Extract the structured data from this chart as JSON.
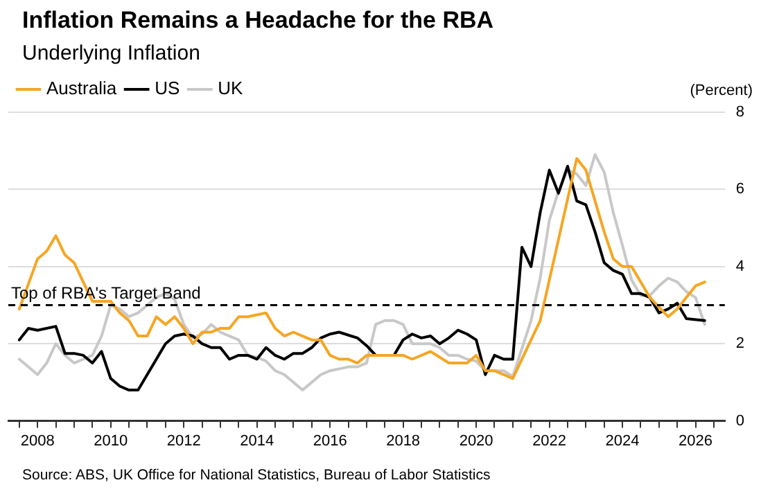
{
  "chart_data": {
    "type": "line",
    "title": "Inflation Remains a Headache for the RBA",
    "subtitle": "Underlying Inflation",
    "ylabel": "(Percent)",
    "annotations": [
      "Source: ABS, UK Office for National Statistics, Bureau of Labor Statistics"
    ],
    "xlim": [
      2007.2,
      2026.8
    ],
    "xticks": [
      {
        "value": 2007.5,
        "label": null
      },
      2008,
      {
        "value": 2008.5,
        "label": null
      },
      {
        "value": 2009,
        "label": null
      },
      {
        "value": 2009.5,
        "label": null
      },
      2010,
      {
        "value": 2010.5,
        "label": null
      },
      {
        "value": 2011,
        "label": null
      },
      {
        "value": 2011.5,
        "label": null
      },
      2012,
      {
        "value": 2012.5,
        "label": null
      },
      {
        "value": 2013,
        "label": null
      },
      {
        "value": 2013.5,
        "label": null
      },
      2014,
      {
        "value": 2014.5,
        "label": null
      },
      {
        "value": 2015,
        "label": null
      },
      {
        "value": 2015.5,
        "label": null
      },
      2016,
      {
        "value": 2016.5,
        "label": null
      },
      {
        "value": 2017,
        "label": null
      },
      {
        "value": 2017.5,
        "label": null
      },
      2018,
      {
        "value": 2018.5,
        "label": null
      },
      {
        "value": 2019,
        "label": null
      },
      {
        "value": 2019.5,
        "label": null
      },
      2020,
      {
        "value": 2020.5,
        "label": null
      },
      {
        "value": 2021,
        "label": null
      },
      {
        "value": 2021.5,
        "label": null
      },
      2022,
      {
        "value": 2022.5,
        "label": null
      },
      {
        "value": 2023,
        "label": null
      },
      {
        "value": 2023.5,
        "label": null
      },
      2024,
      {
        "value": 2024.5,
        "label": null
      },
      {
        "value": 2025,
        "label": null
      },
      {
        "value": 2025.5,
        "label": null
      },
      2026,
      {
        "value": 2026.5,
        "label": null
      }
    ],
    "ylim": [
      0,
      8
    ],
    "yticks": [
      0,
      2,
      4,
      6,
      8
    ],
    "grid": "y",
    "legend": "top left",
    "line_style": "solid",
    "marker": "none",
    "ref_lines": [
      {
        "axis": "y",
        "value": 3,
        "label": "Top of RBA's Target Band",
        "color": "#000000",
        "line_style": "dashed"
      }
    ],
    "series": [
      {
        "name": "Australia",
        "color": "#f5a623",
        "x": [
          2007.5,
          2008.0,
          2008.25,
          2008.5,
          2008.75,
          2009.0,
          2009.25,
          2009.5,
          2010.0,
          2010.25,
          2010.5,
          2010.75,
          2011.0,
          2011.25,
          2011.5,
          2011.75,
          2012.0,
          2012.25,
          2012.5,
          2012.75,
          2013.0,
          2013.25,
          2013.5,
          2013.75,
          2014.25,
          2014.5,
          2014.75,
          2015.0,
          2015.25,
          2015.5,
          2015.75,
          2016.0,
          2016.25,
          2016.5,
          2016.75,
          2017.0,
          2018.0,
          2018.25,
          2018.75,
          2019.25,
          2019.75,
          2020.0,
          2020.25,
          2020.5,
          2020.75,
          2021.0,
          2021.75,
          2022.75,
          2023.0,
          2023.5,
          2023.75,
          2024.0,
          2024.25,
          2024.75,
          2025.25,
          2025.5,
          2025.75,
          2026.0,
          2026.25
        ],
        "values": [
          2.9,
          4.2,
          4.4,
          4.8,
          4.3,
          4.1,
          3.6,
          3.1,
          3.1,
          2.8,
          2.6,
          2.2,
          2.2,
          2.7,
          2.5,
          2.7,
          2.4,
          2.0,
          2.3,
          2.3,
          2.4,
          2.4,
          2.7,
          2.7,
          2.8,
          2.4,
          2.2,
          2.3,
          2.2,
          2.1,
          2.1,
          1.7,
          1.6,
          1.6,
          1.5,
          1.7,
          1.7,
          1.6,
          1.8,
          1.5,
          1.5,
          1.7,
          1.3,
          1.3,
          1.2,
          1.1,
          2.6,
          6.8,
          6.5,
          4.9,
          4.2,
          4.0,
          4.0,
          3.2,
          2.7,
          2.9,
          3.2,
          3.5,
          3.6
        ]
      },
      {
        "name": "US",
        "color": "#000000",
        "x": [
          2007.5,
          2007.75,
          2008.0,
          2008.5,
          2008.75,
          2009.0,
          2009.25,
          2009.5,
          2009.75,
          2010.0,
          2010.25,
          2010.5,
          2010.75,
          2011.0,
          2011.25,
          2011.5,
          2011.75,
          2012.0,
          2012.25,
          2012.5,
          2012.75,
          2013.0,
          2013.25,
          2013.5,
          2013.75,
          2014.0,
          2014.25,
          2014.5,
          2014.75,
          2015.0,
          2015.25,
          2015.5,
          2015.75,
          2016.0,
          2016.25,
          2016.75,
          2017.0,
          2017.25,
          2017.75,
          2018.0,
          2018.25,
          2018.5,
          2018.75,
          2019.0,
          2019.25,
          2019.5,
          2019.75,
          2020.0,
          2020.25,
          2020.5,
          2020.75,
          2021.0,
          2021.25,
          2021.5,
          2021.75,
          2022.0,
          2022.25,
          2022.5,
          2022.75,
          2023.0,
          2023.25,
          2023.5,
          2023.75,
          2024.0,
          2024.25,
          2024.5,
          2024.75,
          2025.0,
          2025.25,
          2025.5,
          2025.75,
          2026.25
        ],
        "values": [
          2.1,
          2.4,
          2.35,
          2.45,
          1.75,
          1.75,
          1.7,
          1.5,
          1.8,
          1.1,
          0.9,
          0.8,
          0.8,
          1.2,
          1.6,
          2.0,
          2.2,
          2.25,
          2.2,
          2.0,
          1.9,
          1.9,
          1.6,
          1.7,
          1.7,
          1.6,
          1.9,
          1.7,
          1.6,
          1.75,
          1.75,
          1.9,
          2.15,
          2.25,
          2.3,
          2.15,
          1.95,
          1.7,
          1.7,
          2.1,
          2.25,
          2.15,
          2.2,
          2.0,
          2.15,
          2.35,
          2.25,
          2.1,
          1.2,
          1.7,
          1.6,
          1.6,
          4.5,
          4.0,
          5.4,
          6.5,
          5.9,
          6.6,
          5.7,
          5.6,
          4.9,
          4.1,
          3.9,
          3.8,
          3.3,
          3.3,
          3.2,
          2.8,
          2.9,
          3.05,
          2.65,
          2.6
        ]
      },
      {
        "name": "UK",
        "color": "#c8c8c8",
        "x": [
          2007.5,
          2008.0,
          2008.25,
          2008.5,
          2008.75,
          2009.0,
          2009.25,
          2009.5,
          2009.75,
          2010.0,
          2010.25,
          2010.5,
          2010.75,
          2011.0,
          2011.25,
          2011.5,
          2011.75,
          2012.0,
          2012.25,
          2012.5,
          2012.75,
          2013.0,
          2013.25,
          2013.5,
          2013.75,
          2014.0,
          2014.25,
          2014.5,
          2014.75,
          2015.0,
          2015.25,
          2015.5,
          2015.75,
          2016.0,
          2016.5,
          2016.75,
          2017.0,
          2017.25,
          2017.5,
          2017.75,
          2018.0,
          2018.25,
          2018.75,
          2019.0,
          2019.25,
          2019.5,
          2019.75,
          2020.0,
          2020.25,
          2020.5,
          2020.75,
          2021.0,
          2021.5,
          2021.75,
          2022.0,
          2022.25,
          2022.5,
          2022.75,
          2023.0,
          2023.25,
          2023.5,
          2023.75,
          2024.0,
          2024.25,
          2024.5,
          2024.75,
          2025.0,
          2025.25,
          2025.5,
          2025.75,
          2026.0,
          2026.25
        ],
        "values": [
          1.6,
          1.2,
          1.5,
          2.0,
          1.7,
          1.5,
          1.6,
          1.7,
          2.2,
          3.0,
          2.9,
          2.7,
          2.8,
          3.0,
          3.2,
          3.3,
          3.15,
          2.5,
          2.15,
          2.25,
          2.5,
          2.3,
          2.2,
          2.1,
          1.7,
          1.65,
          1.55,
          1.3,
          1.2,
          1.0,
          0.8,
          1.0,
          1.2,
          1.3,
          1.4,
          1.4,
          1.5,
          2.5,
          2.6,
          2.6,
          2.5,
          2.0,
          2.0,
          1.9,
          1.7,
          1.7,
          1.6,
          1.55,
          1.3,
          1.3,
          1.3,
          1.15,
          2.6,
          3.7,
          5.2,
          5.95,
          6.5,
          6.4,
          6.1,
          6.9,
          6.45,
          5.4,
          4.55,
          3.65,
          3.25,
          3.25,
          3.5,
          3.7,
          3.6,
          3.35,
          3.2,
          2.5
        ]
      }
    ]
  }
}
